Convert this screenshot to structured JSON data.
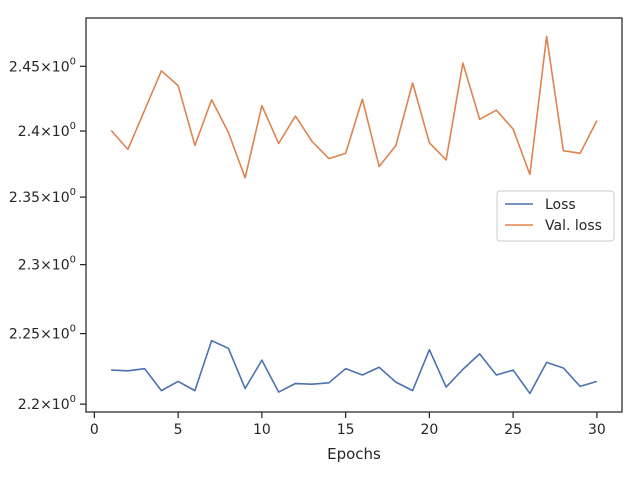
{
  "chart_data": {
    "type": "line",
    "title": "",
    "xlabel": "Epochs",
    "ylabel": "",
    "yscale": "log",
    "xlim": [
      -0.5,
      31.5
    ],
    "ylim": [
      2.1945,
      2.488
    ],
    "x_ticks": [
      {
        "value": 0,
        "label": "0"
      },
      {
        "value": 5,
        "label": "5"
      },
      {
        "value": 10,
        "label": "10"
      },
      {
        "value": 15,
        "label": "15"
      },
      {
        "value": 20,
        "label": "20"
      },
      {
        "value": 25,
        "label": "25"
      },
      {
        "value": 30,
        "label": "30"
      }
    ],
    "y_ticks": [
      {
        "value": 2.2,
        "base": "2.2",
        "mult": "10",
        "exp": "0"
      },
      {
        "value": 2.25,
        "base": "2.25",
        "mult": "10",
        "exp": "0"
      },
      {
        "value": 2.3,
        "base": "2.3",
        "mult": "10",
        "exp": "0"
      },
      {
        "value": 2.35,
        "base": "2.35",
        "mult": "10",
        "exp": "0"
      },
      {
        "value": 2.4,
        "base": "2.4",
        "mult": "10",
        "exp": "0"
      },
      {
        "value": 2.45,
        "base": "2.45",
        "mult": "10",
        "exp": "0"
      }
    ],
    "grid": false,
    "legend": {
      "position": "right"
    },
    "x": [
      1,
      2,
      3,
      4,
      5,
      6,
      7,
      8,
      9,
      10,
      11,
      12,
      13,
      14,
      15,
      16,
      17,
      18,
      19,
      20,
      21,
      22,
      23,
      24,
      25,
      26,
      27,
      28,
      29,
      30
    ],
    "series": [
      {
        "name": "Loss",
        "color": "#4c72b0",
        "values": [
          2.224,
          2.2235,
          2.225,
          2.2095,
          2.216,
          2.2095,
          2.245,
          2.2395,
          2.211,
          2.231,
          2.2085,
          2.2145,
          2.214,
          2.215,
          2.225,
          2.2205,
          2.226,
          2.2155,
          2.2095,
          2.2385,
          2.212,
          2.2245,
          2.2355,
          2.2205,
          2.224,
          2.2075,
          2.2295,
          2.2255,
          2.2125,
          2.216
        ]
      },
      {
        "name": "Val. loss",
        "color": "#dd8452",
        "values": [
          2.4005,
          2.386,
          2.416,
          2.4465,
          2.435,
          2.389,
          2.424,
          2.399,
          2.3645,
          2.4195,
          2.3905,
          2.4115,
          2.392,
          2.379,
          2.383,
          2.4245,
          2.373,
          2.389,
          2.437,
          2.391,
          2.378,
          2.4525,
          2.409,
          2.416,
          2.4015,
          2.367,
          2.4735,
          2.385,
          2.383,
          2.408
        ]
      }
    ]
  }
}
